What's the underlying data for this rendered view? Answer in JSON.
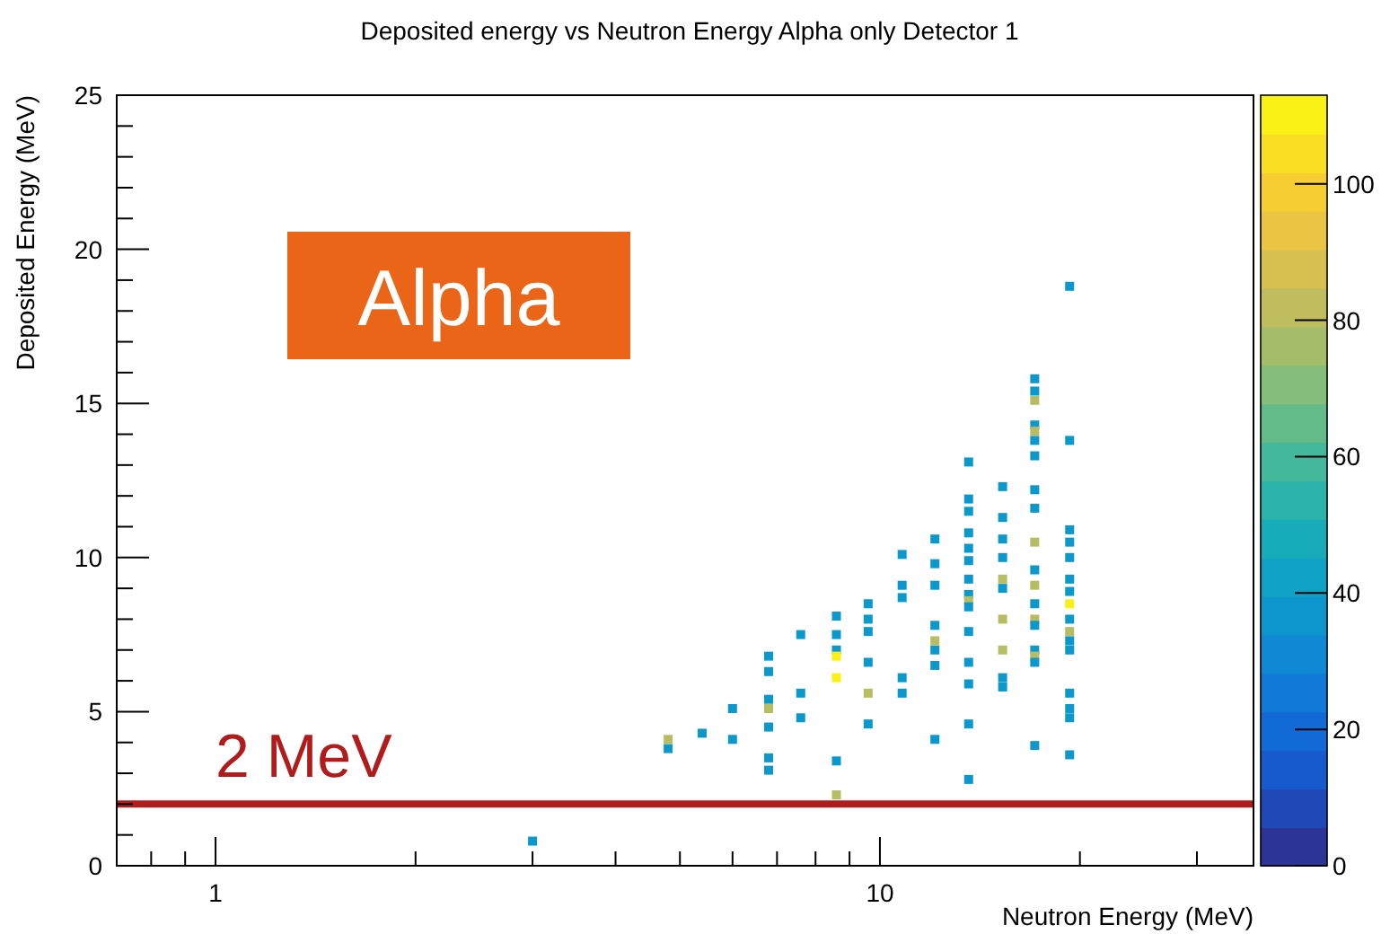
{
  "chart_data": {
    "type": "scatter",
    "title": "Deposited energy vs Neutron Energy Alpha only Detector 1",
    "xlabel": "Neutron Energy (MeV)",
    "ylabel": "Deposited Energy (MeV)",
    "log": "x",
    "xlim": [
      0.71,
      36.5
    ],
    "xticks": [
      {
        "value": 0.8,
        "label": null
      },
      {
        "value": 0.9,
        "label": null
      },
      1,
      {
        "value": 2,
        "label": null
      },
      {
        "value": 3,
        "label": null
      },
      {
        "value": 4,
        "label": null
      },
      {
        "value": 5,
        "label": null
      },
      {
        "value": 6,
        "label": null
      },
      {
        "value": 7,
        "label": null
      },
      {
        "value": 8,
        "label": null
      },
      {
        "value": 9,
        "label": null
      },
      10,
      {
        "value": 20,
        "label": null
      },
      {
        "value": 30,
        "label": null
      }
    ],
    "ylim": [
      0,
      25
    ],
    "yticks": [
      0,
      {
        "value": 1,
        "label": null
      },
      {
        "value": 2,
        "label": null
      },
      {
        "value": 3,
        "label": null
      },
      {
        "value": 4,
        "label": null
      },
      5,
      {
        "value": 6,
        "label": null
      },
      {
        "value": 7,
        "label": null
      },
      {
        "value": 8,
        "label": null
      },
      {
        "value": 9,
        "label": null
      },
      10,
      {
        "value": 11,
        "label": null
      },
      {
        "value": 12,
        "label": null
      },
      {
        "value": 13,
        "label": null
      },
      {
        "value": 14,
        "label": null
      },
      15,
      {
        "value": 16,
        "label": null
      },
      {
        "value": 17,
        "label": null
      },
      {
        "value": 18,
        "label": null
      },
      {
        "value": 19,
        "label": null
      },
      20,
      {
        "value": 21,
        "label": null
      },
      {
        "value": 22,
        "label": null
      },
      {
        "value": 23,
        "label": null
      },
      {
        "value": 24,
        "label": null
      },
      25
    ],
    "clim": [
      0,
      113
    ],
    "cticks": [
      0,
      20,
      40,
      60,
      80,
      100
    ],
    "marker": "square",
    "grid": false,
    "ref_lines": [
      {
        "axis": "y",
        "value": 2,
        "label": "2 MeV",
        "color": "#b01c1c"
      }
    ],
    "annotations": [
      "Alpha"
    ],
    "x": [
      3.0,
      4.8,
      4.8,
      5.4,
      6.0,
      6.0,
      6.8,
      6.8,
      6.8,
      6.8,
      6.8,
      6.8,
      6.8,
      7.6,
      7.6,
      7.6,
      8.6,
      8.6,
      8.6,
      8.6,
      8.6,
      8.6,
      8.6,
      9.6,
      9.6,
      9.6,
      9.6,
      9.6,
      9.6,
      10.8,
      10.8,
      10.8,
      10.8,
      10.8,
      12.1,
      12.1,
      12.1,
      12.1,
      12.1,
      12.1,
      12.1,
      12.1,
      13.6,
      13.6,
      13.6,
      13.6,
      13.6,
      13.6,
      13.6,
      13.6,
      13.6,
      13.6,
      13.6,
      13.6,
      13.6,
      13.6,
      13.6,
      15.3,
      15.3,
      15.3,
      15.3,
      15.3,
      15.3,
      15.3,
      15.3,
      15.3,
      15.3,
      17.1,
      17.1,
      17.1,
      17.1,
      17.1,
      17.1,
      17.1,
      17.1,
      17.1,
      17.1,
      17.1,
      17.1,
      17.1,
      17.1,
      17.1,
      17.1,
      17.1,
      17.1,
      17.1,
      19.3,
      19.3,
      19.3,
      19.3,
      19.3,
      19.3,
      19.3,
      19.3,
      19.3,
      19.3,
      19.3,
      19.3,
      19.3,
      19.3,
      19.3,
      19.3
    ],
    "values": [
      0.8,
      4.1,
      3.8,
      4.3,
      5.1,
      4.1,
      6.8,
      6.3,
      5.4,
      5.1,
      4.5,
      3.5,
      3.1,
      7.5,
      5.6,
      4.8,
      8.1,
      7.5,
      7.0,
      6.8,
      6.1,
      3.4,
      2.3,
      8.5,
      8.0,
      7.6,
      6.6,
      5.6,
      4.6,
      10.1,
      9.1,
      8.7,
      6.1,
      5.6,
      10.6,
      9.8,
      9.1,
      7.8,
      7.3,
      7.0,
      6.5,
      4.1,
      13.1,
      11.9,
      11.5,
      10.8,
      10.3,
      9.9,
      9.3,
      8.8,
      8.6,
      8.4,
      7.6,
      6.6,
      5.9,
      4.6,
      2.8,
      12.3,
      11.3,
      10.6,
      10.0,
      9.3,
      9.0,
      8.0,
      7.0,
      6.1,
      5.8,
      15.8,
      15.4,
      15.1,
      14.3,
      14.1,
      13.8,
      13.3,
      12.2,
      11.6,
      10.5,
      9.6,
      9.1,
      8.5,
      8.0,
      7.8,
      7.0,
      6.8,
      6.6,
      3.9,
      18.8,
      13.8,
      10.9,
      10.5,
      10.0,
      9.3,
      8.9,
      8.5,
      8.0,
      7.6,
      7.3,
      7.0,
      5.6,
      5.1,
      4.8,
      3.6
    ],
    "cvalues": [
      38,
      80,
      38,
      38,
      38,
      38,
      38,
      38,
      38,
      80,
      38,
      38,
      38,
      38,
      38,
      38,
      38,
      38,
      38,
      110,
      110,
      38,
      80,
      38,
      38,
      38,
      38,
      80,
      38,
      38,
      38,
      38,
      38,
      38,
      38,
      38,
      38,
      38,
      80,
      38,
      38,
      38,
      38,
      38,
      38,
      38,
      38,
      38,
      38,
      38,
      80,
      38,
      38,
      38,
      38,
      38,
      38,
      38,
      38,
      38,
      38,
      80,
      38,
      80,
      80,
      38,
      38,
      38,
      38,
      80,
      38,
      80,
      38,
      38,
      38,
      38,
      80,
      38,
      80,
      38,
      80,
      38,
      38,
      80,
      38,
      38,
      38,
      38,
      38,
      38,
      38,
      38,
      38,
      110,
      38,
      80,
      38,
      38,
      38,
      38,
      38,
      38
    ]
  }
}
